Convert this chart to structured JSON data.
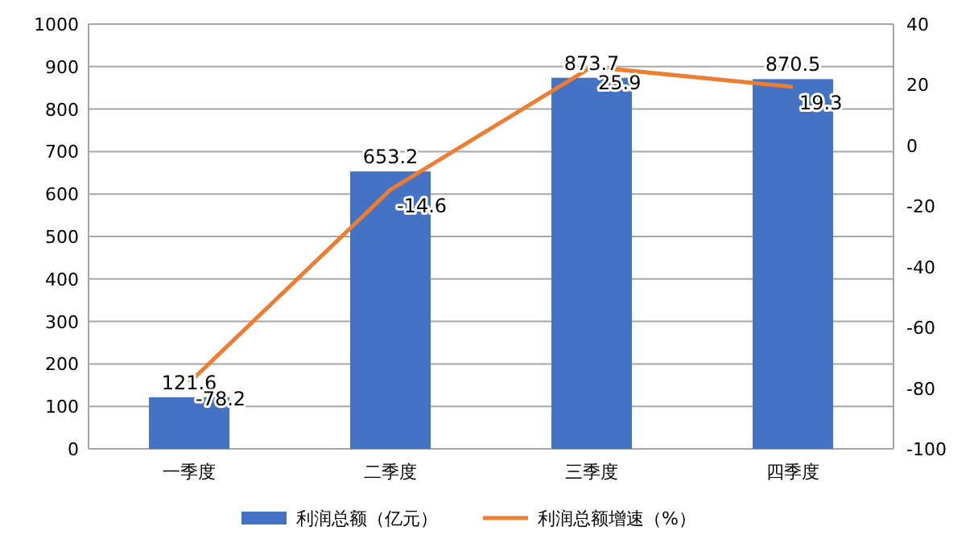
{
  "chart_data": {
    "type": "bar",
    "categories": [
      "一季度",
      "二季度",
      "三季度",
      "四季度"
    ],
    "series": [
      {
        "name": "利润总额（亿元）",
        "color": "#4472c4",
        "values": [
          121.6,
          653.2,
          873.7,
          870.5
        ]
      },
      {
        "name": "利润总额增速（%）",
        "color": "#ed7d31",
        "type": "line",
        "axis": "y2",
        "values": [
          -78.2,
          -14.6,
          25.9,
          19.3
        ]
      }
    ],
    "ylim": [
      0,
      1000
    ],
    "yticks": [
      0,
      100,
      200,
      300,
      400,
      500,
      600,
      700,
      800,
      900,
      1000
    ],
    "y2lim": [
      -100,
      40
    ],
    "y2ticks": [
      -100,
      -80,
      -60,
      -40,
      -20,
      0,
      20,
      40
    ],
    "grid": "y",
    "legend": "bottom",
    "data_labels": true,
    "marker": "none"
  }
}
